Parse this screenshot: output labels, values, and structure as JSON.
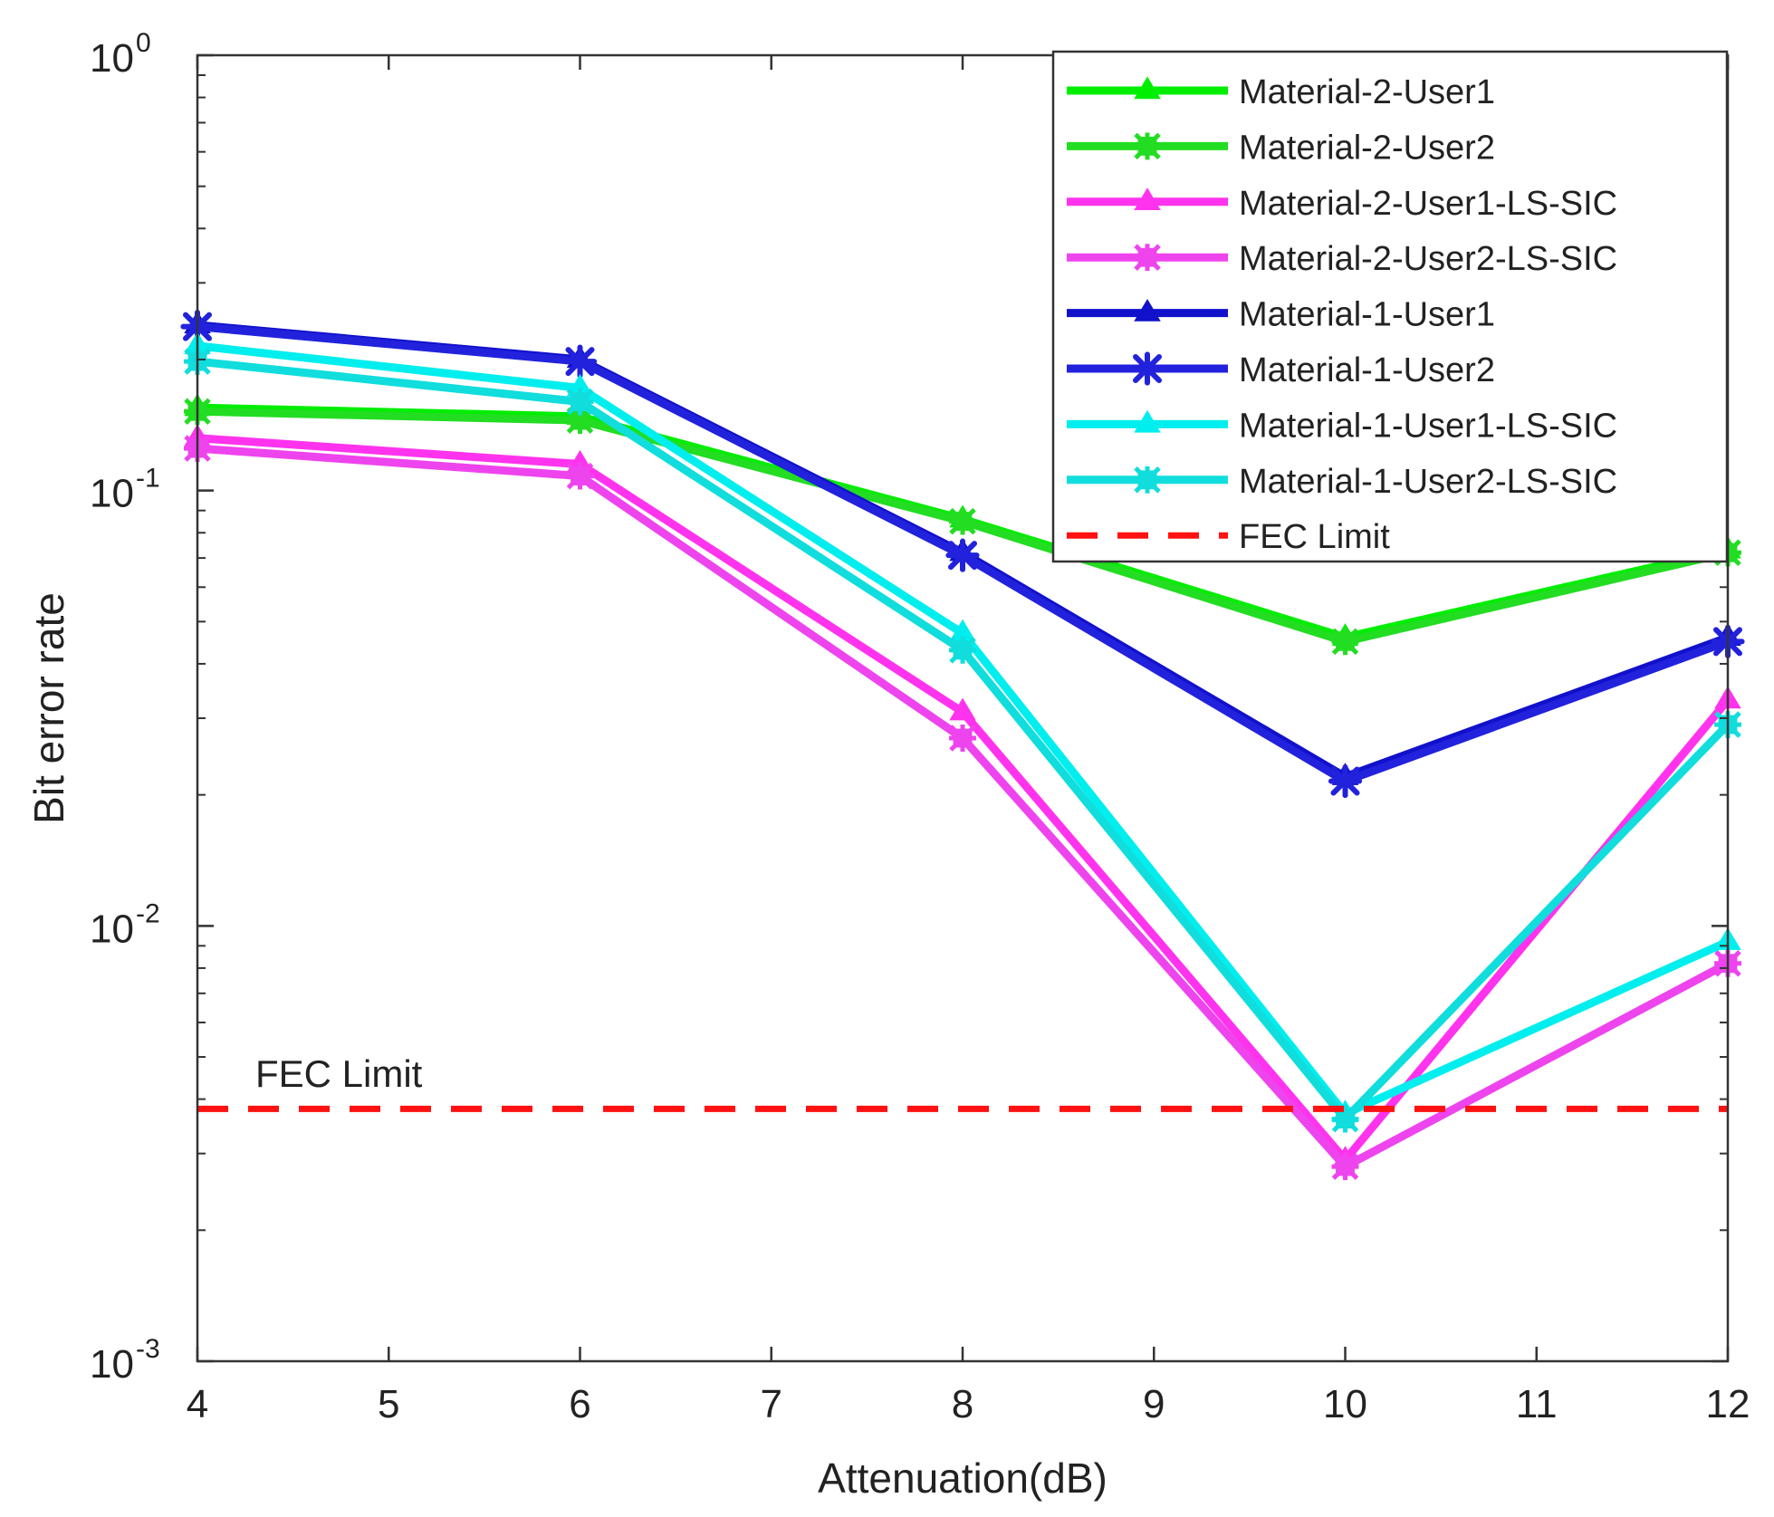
{
  "chart_data": {
    "type": "line",
    "title": "",
    "xlabel": "Attenuation(dB)",
    "ylabel": "Bit error rate",
    "x_scale": "linear",
    "y_scale": "log",
    "xlim": [
      4,
      12
    ],
    "ylim": [
      0.001,
      1
    ],
    "x_ticks": [
      "4",
      "5",
      "6",
      "7",
      "8",
      "9",
      "10",
      "11",
      "12"
    ],
    "x_tick_values": [
      4,
      5,
      6,
      7,
      8,
      9,
      10,
      11,
      12
    ],
    "y_ticks": [
      {
        "value": 1,
        "base": "10",
        "exponent": "0"
      },
      {
        "value": 0.1,
        "base": "10",
        "exponent": "-1"
      },
      {
        "value": 0.01,
        "base": "10",
        "exponent": "-2"
      },
      {
        "value": 0.001,
        "base": "10",
        "exponent": "-3"
      }
    ],
    "x": [
      4,
      6,
      8,
      10,
      12
    ],
    "series": [
      {
        "name": "Material-2-User1",
        "color": "#00ee00",
        "marker": "triangle",
        "values": [
          0.155,
          0.148,
          0.086,
          0.046,
          0.073
        ]
      },
      {
        "name": "Material-2-User2",
        "color": "#22dd22",
        "marker": "square",
        "values": [
          0.152,
          0.145,
          0.085,
          0.045,
          0.072
        ]
      },
      {
        "name": "Material-2-User1-LS-SIC",
        "color": "#ff33ee",
        "marker": "triangle",
        "values": [
          0.132,
          0.115,
          0.031,
          0.0029,
          0.033
        ]
      },
      {
        "name": "Material-2-User2-LS-SIC",
        "color": "#ee44ee",
        "marker": "square",
        "values": [
          0.125,
          0.108,
          0.027,
          0.0028,
          0.0082
        ]
      },
      {
        "name": "Material-1-User1",
        "color": "#1111cc",
        "marker": "triangle",
        "values": [
          0.24,
          0.2,
          0.072,
          0.022,
          0.046
        ]
      },
      {
        "name": "Material-1-User2",
        "color": "#2222dd",
        "marker": "asterisk",
        "values": [
          0.238,
          0.198,
          0.071,
          0.0215,
          0.045
        ]
      },
      {
        "name": "Material-1-User1-LS-SIC",
        "color": "#00eeee",
        "marker": "triangle",
        "values": [
          0.215,
          0.172,
          0.047,
          0.0037,
          0.0092
        ]
      },
      {
        "name": "Material-1-User2-LS-SIC",
        "color": "#11dddd",
        "marker": "square",
        "values": [
          0.198,
          0.16,
          0.043,
          0.0036,
          0.029
        ]
      }
    ],
    "reference_lines": [
      {
        "name": "FEC Limit",
        "y": 0.0038,
        "color": "#ff1111",
        "style": "dashed"
      }
    ],
    "annotations": [
      {
        "text": "FEC Limit"
      }
    ],
    "legend": {
      "position": "top-right",
      "entries": [
        "Material-2-User1",
        "Material-2-User2",
        "Material-2-User1-LS-SIC",
        "Material-2-User2-LS-SIC",
        "Material-1-User1",
        "Material-1-User2",
        "Material-1-User1-LS-SIC",
        "Material-1-User2-LS-SIC",
        "FEC Limit"
      ]
    },
    "grid": false
  }
}
